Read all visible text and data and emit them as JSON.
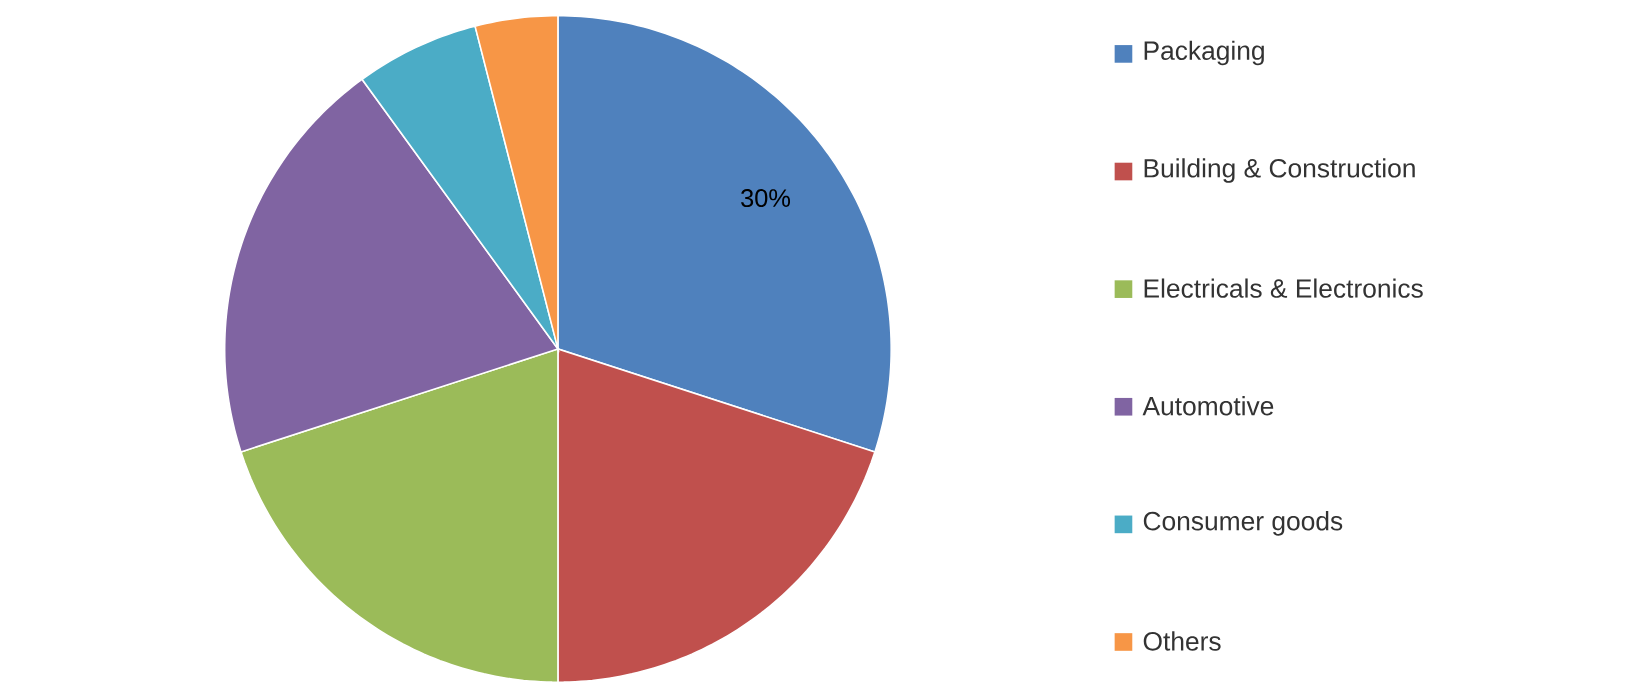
{
  "chart_data": {
    "type": "pie",
    "categories": [
      "Packaging",
      "Building & Construction",
      "Electricals & Electronics",
      "Automotive",
      "Consumer goods",
      "Others"
    ],
    "values": [
      30,
      20,
      20,
      20,
      6,
      4
    ],
    "colors": [
      "#4f81bd",
      "#c0504d",
      "#9bbb59",
      "#8064a2",
      "#4bacc6",
      "#f79646"
    ],
    "value_labels": [
      "30%",
      null,
      null,
      null,
      null,
      null
    ],
    "legend": "right"
  }
}
